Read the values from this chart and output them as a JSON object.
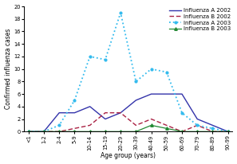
{
  "age_groups": [
    "<1",
    "1-2",
    "2-4",
    "5-9",
    "10-14",
    "15-19",
    "20-29",
    "30-39",
    "40-49",
    "50-59",
    "60-69",
    "70-79",
    "80-89",
    "90-99"
  ],
  "influenza_A_2002": [
    0,
    0,
    3,
    3,
    4,
    2,
    3,
    5,
    6,
    6,
    6,
    2,
    1,
    0
  ],
  "influenza_B_2002": [
    0,
    0,
    0,
    0.5,
    1,
    3,
    3,
    1,
    2,
    1,
    0,
    1,
    0,
    0
  ],
  "influenza_A_2003": [
    0,
    0,
    1,
    5,
    12,
    11.5,
    19,
    8,
    10,
    9.5,
    3,
    1,
    0.5,
    0
  ],
  "influenza_B_2003": [
    0,
    0,
    0,
    0,
    0,
    0,
    0,
    0,
    1,
    0.5,
    0,
    0,
    0,
    0
  ],
  "colors": {
    "A2002": "#3333aa",
    "B2002": "#aa2244",
    "A2003": "#33bbee",
    "B2003": "#228833"
  },
  "legend_labels": [
    "Influenza A 2002",
    "Influenza B 2002",
    "Influenza A 2003",
    "Influenza B 2003"
  ],
  "ylabel": "Confirmed influenza cases",
  "xlabel": "Age group (years)",
  "ylim": [
    0,
    20
  ],
  "yticks": [
    0,
    2,
    4,
    6,
    8,
    10,
    12,
    14,
    16,
    18,
    20
  ],
  "axis_fontsize": 5.5,
  "tick_fontsize": 4.8,
  "legend_fontsize": 5.0
}
